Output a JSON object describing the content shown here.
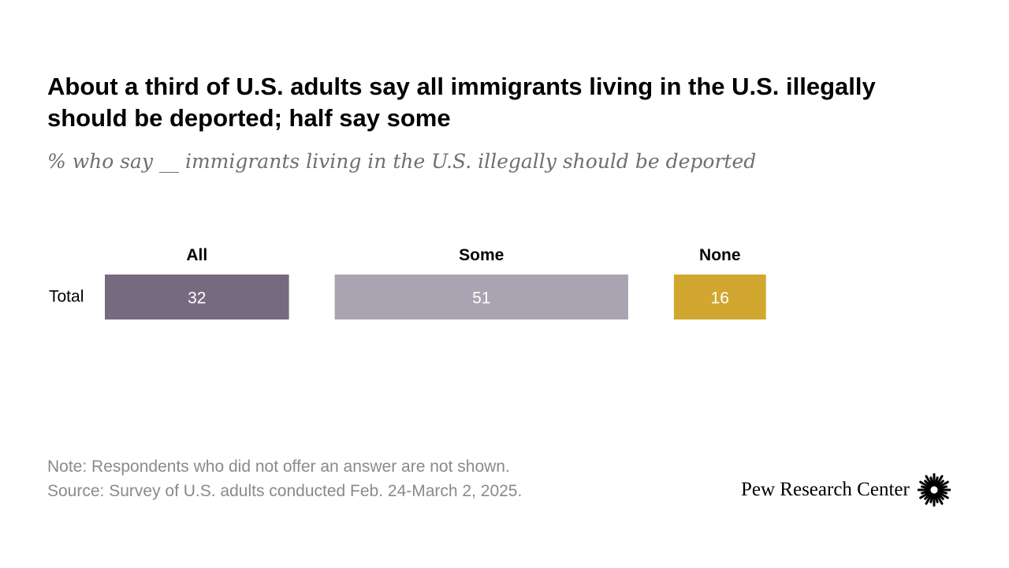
{
  "title": "About a third of U.S. adults say all immigrants living in the U.S. illegally should be deported; half say some",
  "subtitle": "% who say __ immigrants living in the U.S. illegally should be deported",
  "chart_data": {
    "type": "bar",
    "orientation": "horizontal",
    "layout": "side-by-side segments",
    "categories": [
      "Total"
    ],
    "series": [
      {
        "name": "All",
        "values": [
          32
        ],
        "color": "#756a80"
      },
      {
        "name": "Some",
        "values": [
          51
        ],
        "color": "#aaa3b1"
      },
      {
        "name": "None",
        "values": [
          16
        ],
        "color": "#d1a730"
      }
    ],
    "value_label_color": "#ffffff"
  },
  "footer": {
    "note": "Note: Respondents who did not offer an answer are not shown.",
    "source": "Source: Survey of U.S. adults conducted Feb. 24-March 2, 2025."
  },
  "brand": {
    "name": "Pew Research Center",
    "logo_icon": "pew-starburst-icon"
  }
}
